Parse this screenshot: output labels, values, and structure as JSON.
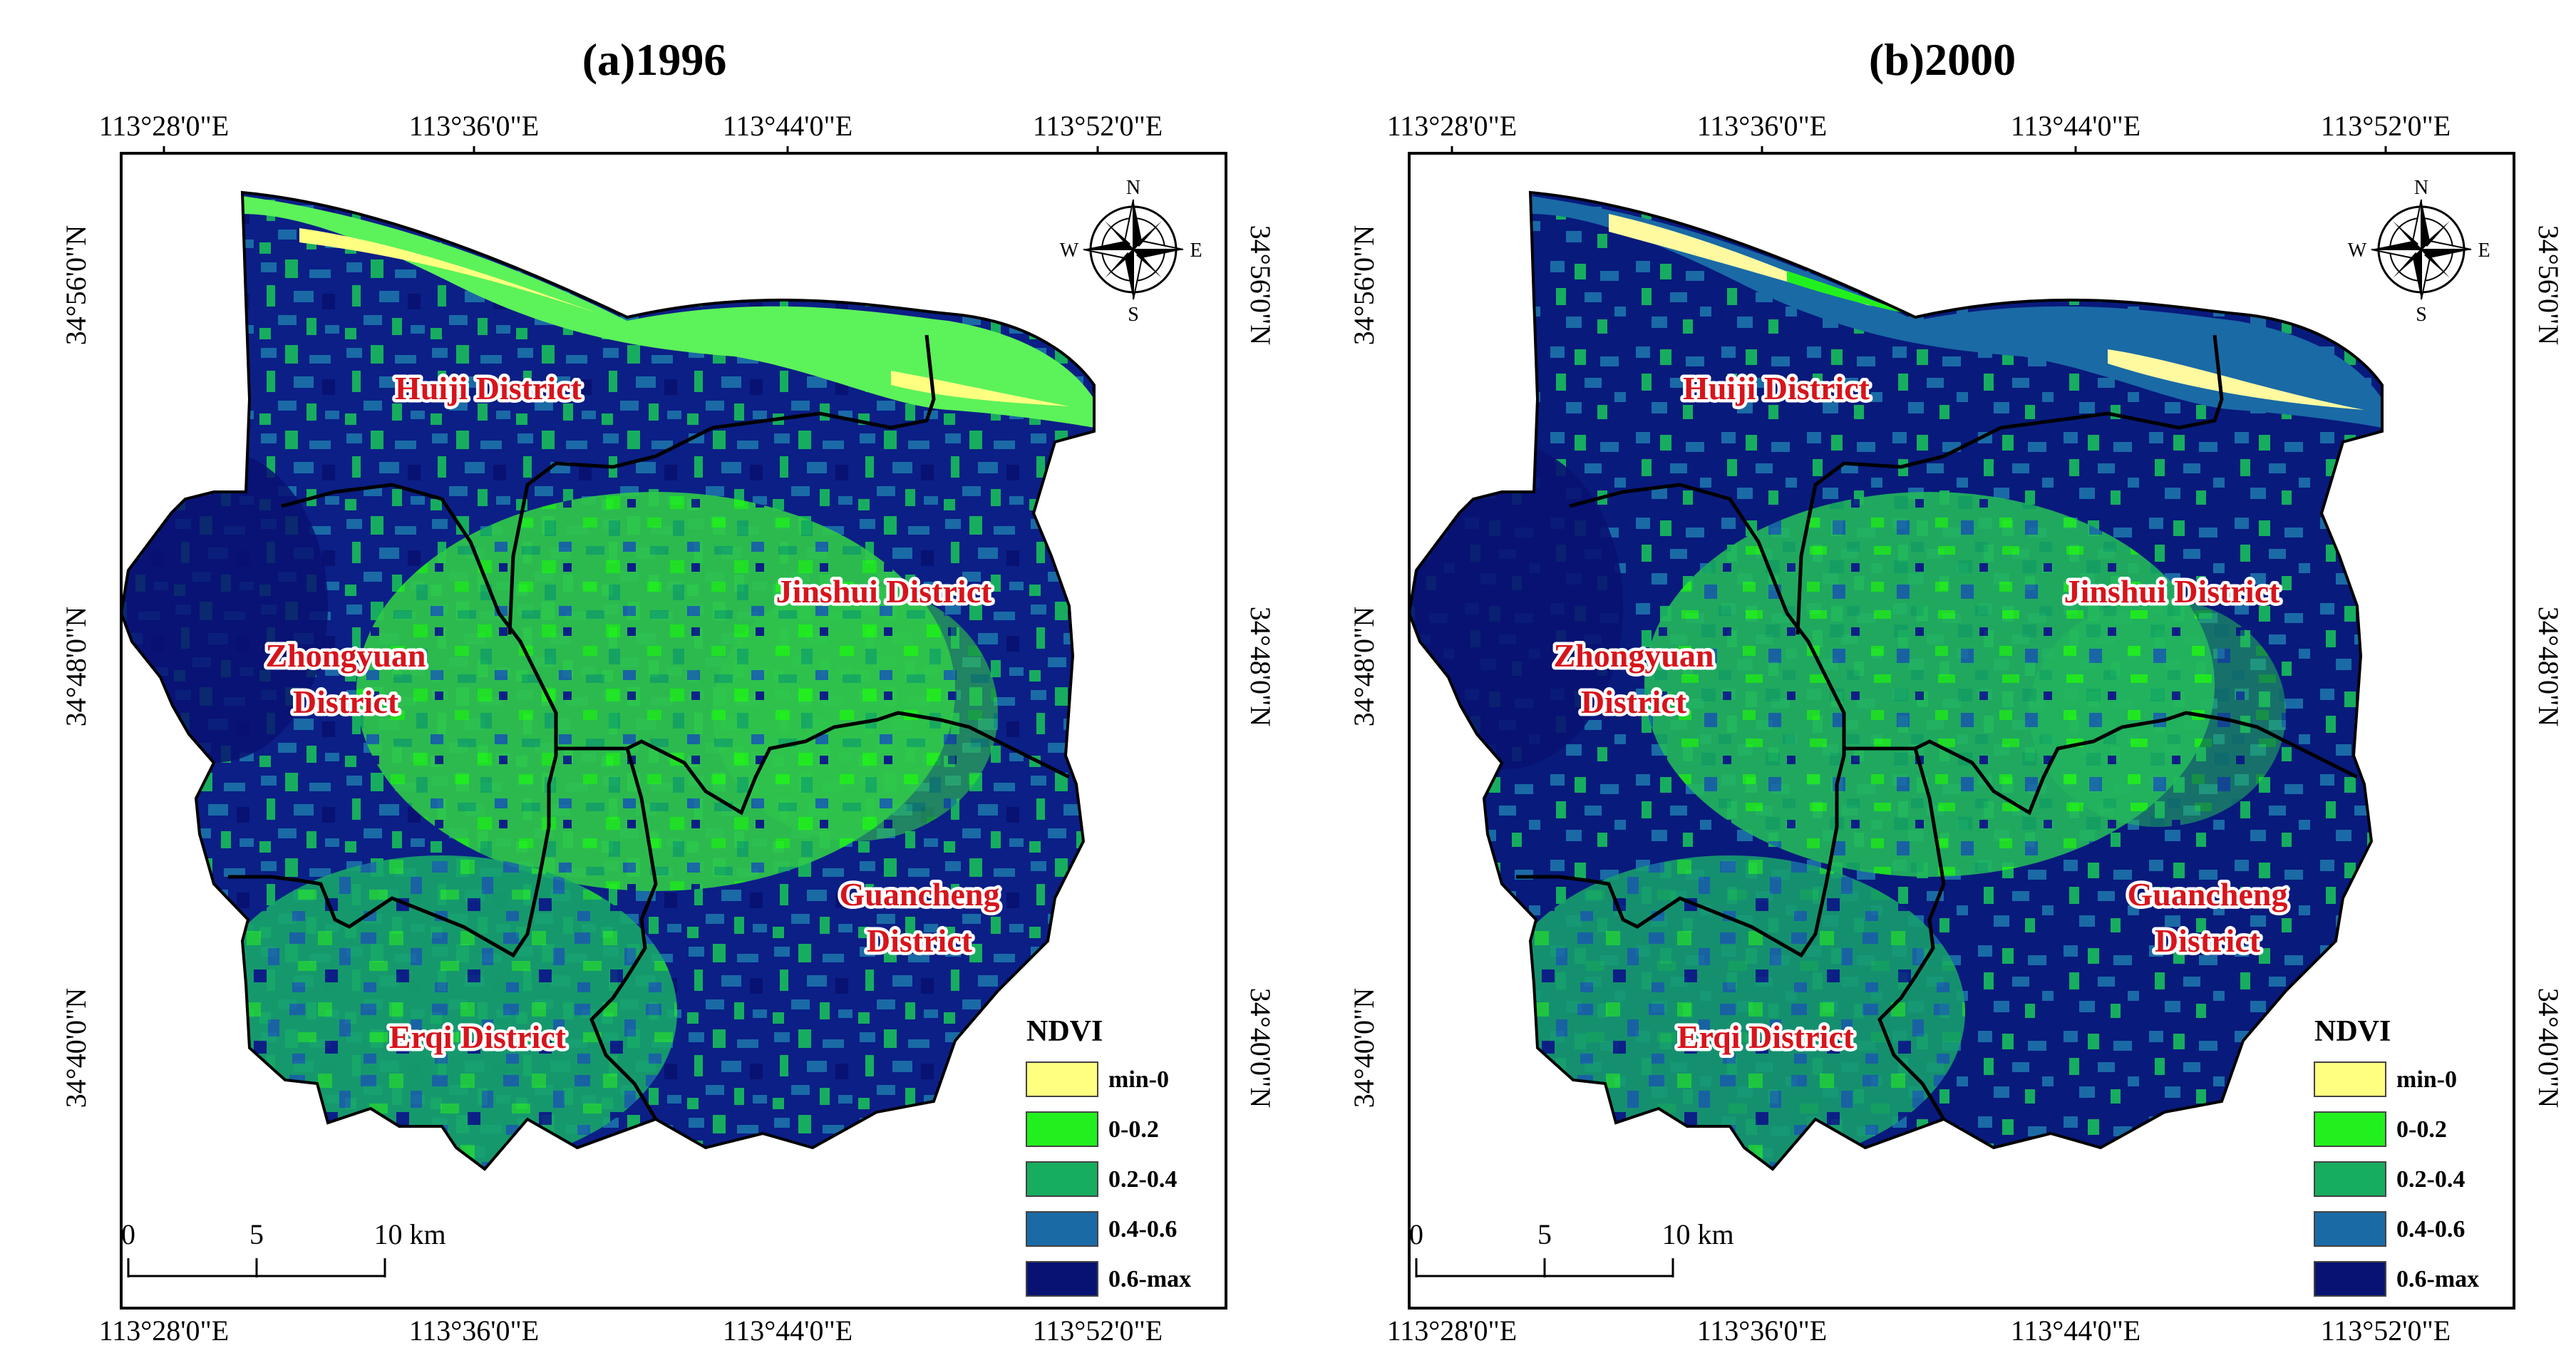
{
  "panels": [
    {
      "title": "(a)1996",
      "lon_ticks": [
        "113°28'0\"E",
        "113°36'0\"E",
        "113°44'0\"E",
        "113°52'0\"E"
      ],
      "lat_ticks": [
        "34°56'0\"N",
        "34°48'0\"N",
        "34°40'0\"N"
      ],
      "districts": {
        "huiji": "Huiji District",
        "jinshui": "Jinshui District",
        "zhongyuan_1": "Zhongyuan",
        "zhongyuan_2": "District",
        "guancheng_1": "Guancheng",
        "guancheng_2": "District",
        "erqi": "Erqi District"
      }
    },
    {
      "title": "(b)2000",
      "lon_ticks": [
        "113°28'0\"E",
        "113°36'0\"E",
        "113°44'0\"E",
        "113°52'0\"E"
      ],
      "lat_ticks": [
        "34°56'0\"N",
        "34°48'0\"N",
        "34°40'0\"N"
      ],
      "districts": {
        "huiji": "Huiji District",
        "jinshui": "Jinshui District",
        "zhongyuan_1": "Zhongyuan",
        "zhongyuan_2": "District",
        "guancheng_1": "Guancheng",
        "guancheng_2": "District",
        "erqi": "Erqi District"
      }
    }
  ],
  "legend": {
    "title": "NDVI",
    "classes": [
      {
        "label": "min-0",
        "color": "#ffff80"
      },
      {
        "label": "0-0.2",
        "color": "#22f01e"
      },
      {
        "label": "0.2-0.4",
        "color": "#17ad5f"
      },
      {
        "label": "0.4-0.6",
        "color": "#1a6aa6"
      },
      {
        "label": "0.6-max",
        "color": "#081272"
      }
    ]
  },
  "scale_bar": {
    "labels": [
      "0",
      "5",
      "10 km"
    ]
  },
  "compass": {
    "n": "N",
    "e": "E",
    "s": "S",
    "w": "W"
  }
}
